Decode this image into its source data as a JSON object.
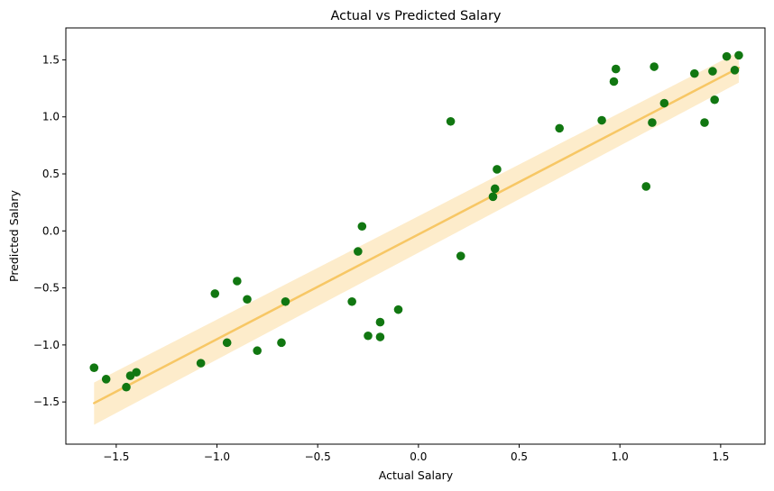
{
  "chart_data": {
    "type": "scatter",
    "title": "Actual vs Predicted Salary",
    "xlabel": "Actual Salary",
    "ylabel": "Predicted Salary",
    "xlim": [
      -1.75,
      1.72
    ],
    "ylim": [
      -1.87,
      1.78
    ],
    "xticks": [
      -1.5,
      -1.0,
      -0.5,
      0.0,
      0.5,
      1.0,
      1.5
    ],
    "yticks": [
      -1.5,
      -1.0,
      -0.5,
      0.0,
      0.5,
      1.0,
      1.5
    ],
    "grid": false,
    "colors": {
      "points": "#117711",
      "fit_line": "#f7c765",
      "confidence_band": "#fdeccb"
    },
    "series": [
      {
        "points": [
          [
            -1.61,
            -1.2
          ],
          [
            -1.55,
            -1.3
          ],
          [
            -1.45,
            -1.37
          ],
          [
            -1.43,
            -1.27
          ],
          [
            -1.4,
            -1.24
          ],
          [
            -1.08,
            -1.16
          ],
          [
            -1.01,
            -0.55
          ],
          [
            -0.95,
            -0.98
          ],
          [
            -0.9,
            -0.44
          ],
          [
            -0.85,
            -0.6
          ],
          [
            -0.8,
            -1.05
          ],
          [
            -0.68,
            -0.98
          ],
          [
            -0.66,
            -0.62
          ],
          [
            -0.33,
            -0.62
          ],
          [
            -0.3,
            -0.18
          ],
          [
            -0.28,
            0.04
          ],
          [
            -0.25,
            -0.92
          ],
          [
            -0.19,
            -0.8
          ],
          [
            -0.19,
            -0.93
          ],
          [
            -0.1,
            -0.69
          ],
          [
            0.16,
            0.96
          ],
          [
            0.21,
            -0.22
          ],
          [
            0.37,
            0.3
          ],
          [
            0.38,
            0.37
          ],
          [
            0.39,
            0.54
          ],
          [
            0.7,
            0.9
          ],
          [
            0.91,
            0.97
          ],
          [
            0.97,
            1.31
          ],
          [
            0.98,
            1.42
          ],
          [
            1.13,
            0.39
          ],
          [
            1.16,
            0.95
          ],
          [
            1.17,
            1.44
          ],
          [
            1.22,
            1.12
          ],
          [
            1.37,
            1.38
          ],
          [
            1.42,
            0.95
          ],
          [
            1.46,
            1.4
          ],
          [
            1.47,
            1.15
          ],
          [
            1.53,
            1.53
          ],
          [
            1.57,
            1.41
          ],
          [
            1.59,
            1.54
          ]
        ]
      }
    ],
    "fit": {
      "x": [
        -1.61,
        1.59
      ],
      "y": [
        -1.51,
        1.43
      ],
      "band_lower": [
        -1.7,
        1.3
      ],
      "band_upper": [
        -1.33,
        1.57
      ]
    }
  }
}
